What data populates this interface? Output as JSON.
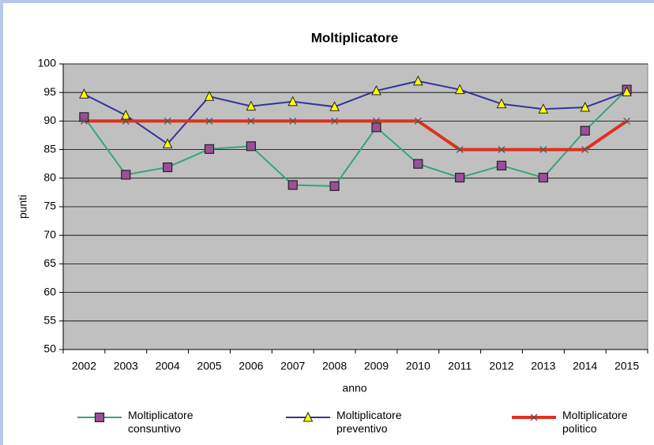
{
  "chart_data": {
    "type": "line",
    "title": "Moltiplicatore",
    "x_label": "anno",
    "y_label": "punti",
    "categories": [
      "2002",
      "2003",
      "2004",
      "2005",
      "2006",
      "2007",
      "2008",
      "2009",
      "2010",
      "2011",
      "2012",
      "2013",
      "2014",
      "2015"
    ],
    "series": [
      {
        "name": "Moltiplicatore consuntivo",
        "color": "#3aa37a",
        "marker": "square",
        "marker_color": "#9b4f96",
        "values": [
          90.7,
          80.6,
          81.9,
          85.1,
          85.6,
          78.8,
          78.6,
          88.9,
          82.5,
          80.1,
          82.2,
          80.1,
          88.3,
          95.5
        ]
      },
      {
        "name": "Moltiplicatore preventivo",
        "color": "#333399",
        "marker": "triangle",
        "marker_color": "#ffff00",
        "values": [
          94.7,
          91.0,
          86.0,
          94.3,
          92.6,
          93.4,
          92.5,
          95.3,
          97.0,
          95.5,
          93.0,
          92.1,
          92.4,
          95.1
        ]
      },
      {
        "name": "Moltiplicatore politico",
        "color": "#e0301e",
        "marker": "x",
        "marker_color": "#555555",
        "values": [
          90,
          90,
          90,
          90,
          90,
          90,
          90,
          90,
          90,
          85,
          85,
          85,
          85,
          90
        ]
      }
    ],
    "ylim": [
      50,
      100
    ],
    "yticks": [
      50,
      55,
      60,
      65,
      70,
      75,
      80,
      85,
      90,
      95,
      100
    ],
    "grid": true,
    "legend": "bottom",
    "plot_background": "#c0c0c0"
  }
}
